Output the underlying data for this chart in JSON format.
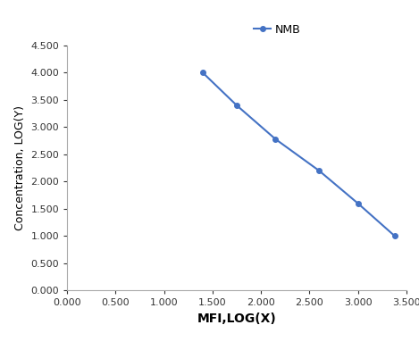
{
  "x": [
    1.4,
    1.75,
    2.15,
    2.6,
    3.0,
    3.38
  ],
  "y": [
    4.0,
    3.4,
    2.78,
    2.2,
    1.6,
    1.0
  ],
  "line_color": "#4472C4",
  "marker": "o",
  "marker_size": 4,
  "line_width": 1.5,
  "legend_label": "NMB",
  "xlabel": "MFI,LOG(X)",
  "ylabel": "Concentration, LOG(Y)",
  "xlim": [
    0.0,
    3.5
  ],
  "ylim": [
    0.0,
    4.5
  ],
  "xticks": [
    0.0,
    0.5,
    1.0,
    1.5,
    2.0,
    2.5,
    3.0,
    3.5
  ],
  "yticks": [
    0.0,
    0.5,
    1.0,
    1.5,
    2.0,
    2.5,
    3.0,
    3.5,
    4.0,
    4.5
  ],
  "xlabel_fontsize": 10,
  "ylabel_fontsize": 9,
  "tick_fontsize": 8,
  "legend_fontsize": 9,
  "background_color": "#ffffff",
  "spine_color": "#aaaaaa"
}
